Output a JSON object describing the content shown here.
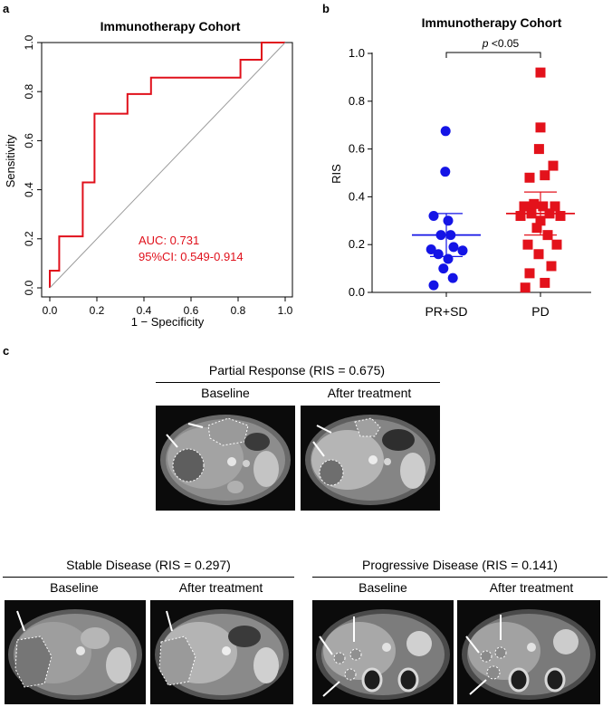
{
  "panels": {
    "a": "a",
    "b": "b",
    "c": "c"
  },
  "chart_data": [
    {
      "type": "line",
      "panel": "a",
      "title": "Immunotherapy Cohort",
      "xlabel": "1 − Specificity",
      "ylabel": "Sensitivity",
      "xlim": [
        0,
        1
      ],
      "ylim": [
        0,
        1
      ],
      "xticks": [
        "0.0",
        "0.2",
        "0.4",
        "0.6",
        "0.8",
        "1.0"
      ],
      "yticks": [
        "0.0",
        "0.2",
        "0.4",
        "0.6",
        "0.8",
        "1.0"
      ],
      "series": [
        {
          "name": "ROC",
          "color": "#e0101b",
          "x": [
            0,
            0,
            0.04,
            0.04,
            0.14,
            0.14,
            0.19,
            0.19,
            0.33,
            0.33,
            0.43,
            0.43,
            0.81,
            0.81,
            0.9,
            0.9,
            1.0
          ],
          "y": [
            0,
            0.07,
            0.07,
            0.21,
            0.21,
            0.43,
            0.43,
            0.71,
            0.71,
            0.79,
            0.79,
            0.857,
            0.857,
            0.93,
            0.93,
            1.0,
            1.0
          ]
        },
        {
          "name": "reference",
          "color": "#9a9a9a",
          "x": [
            0,
            1
          ],
          "y": [
            0,
            1
          ]
        }
      ],
      "annotations": [
        "AUC: 0.731",
        "95%CI: 0.549-0.914"
      ]
    },
    {
      "type": "scatter",
      "panel": "b",
      "title": "Immunotherapy Cohort",
      "ylabel": "RIS",
      "ylim": [
        0,
        1
      ],
      "yticks": [
        "0.0",
        "0.2",
        "0.4",
        "0.6",
        "0.8",
        "1.0"
      ],
      "categories": [
        "PR+SD",
        "PD"
      ],
      "significance": {
        "prefix": "p",
        "text": " <0.05"
      },
      "series": [
        {
          "name": "PR+SD",
          "color": "#1414e6",
          "marker": "circle",
          "mean": 0.24,
          "ci": [
            0.15,
            0.33
          ],
          "points": [
            {
              "dx": -0.02,
              "y": 0.675
            },
            {
              "dx": -0.03,
              "y": 0.505
            },
            {
              "dx": -0.35,
              "y": 0.32
            },
            {
              "dx": 0.05,
              "y": 0.3
            },
            {
              "dx": -0.15,
              "y": 0.24
            },
            {
              "dx": 0.12,
              "y": 0.24
            },
            {
              "dx": -0.42,
              "y": 0.18
            },
            {
              "dx": 0.2,
              "y": 0.19
            },
            {
              "dx": 0.45,
              "y": 0.175
            },
            {
              "dx": -0.22,
              "y": 0.16
            },
            {
              "dx": 0.05,
              "y": 0.14
            },
            {
              "dx": -0.08,
              "y": 0.1
            },
            {
              "dx": 0.18,
              "y": 0.06
            },
            {
              "dx": -0.35,
              "y": 0.03
            }
          ]
        },
        {
          "name": "PD",
          "color": "#e3121b",
          "marker": "square",
          "mean": 0.33,
          "ci": [
            0.24,
            0.42
          ],
          "points": [
            {
              "dx": 0.0,
              "y": 0.92
            },
            {
              "dx": 0.0,
              "y": 0.69
            },
            {
              "dx": -0.04,
              "y": 0.6
            },
            {
              "dx": 0.35,
              "y": 0.53
            },
            {
              "dx": -0.3,
              "y": 0.48
            },
            {
              "dx": 0.12,
              "y": 0.49
            },
            {
              "dx": -0.18,
              "y": 0.37
            },
            {
              "dx": 0.07,
              "y": 0.36
            },
            {
              "dx": -0.45,
              "y": 0.36
            },
            {
              "dx": 0.4,
              "y": 0.36
            },
            {
              "dx": -0.25,
              "y": 0.33
            },
            {
              "dx": 0.25,
              "y": 0.33
            },
            {
              "dx": 0.55,
              "y": 0.32
            },
            {
              "dx": -0.55,
              "y": 0.32
            },
            {
              "dx": 0.0,
              "y": 0.3
            },
            {
              "dx": -0.1,
              "y": 0.27
            },
            {
              "dx": 0.2,
              "y": 0.24
            },
            {
              "dx": -0.35,
              "y": 0.2
            },
            {
              "dx": 0.45,
              "y": 0.2
            },
            {
              "dx": -0.05,
              "y": 0.16
            },
            {
              "dx": 0.3,
              "y": 0.11
            },
            {
              "dx": -0.3,
              "y": 0.08
            },
            {
              "dx": 0.12,
              "y": 0.04
            },
            {
              "dx": -0.42,
              "y": 0.02
            }
          ]
        }
      ]
    }
  ],
  "panel_c": {
    "partial": {
      "title": "Partial Response (RIS = 0.675)",
      "baseline": "Baseline",
      "after": "After treatment"
    },
    "stable": {
      "title": "Stable Disease (RIS = 0.297)",
      "baseline": "Baseline",
      "after": "After treatment"
    },
    "progressive": {
      "title": "Progressive Disease (RIS = 0.141)",
      "baseline": "Baseline",
      "after": "After treatment"
    }
  }
}
